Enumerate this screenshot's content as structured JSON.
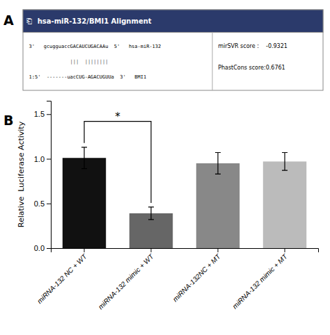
{
  "chart_data": {
    "type": "bar",
    "panel_labels": [
      "A",
      "B"
    ],
    "annotations": [
      "⎗",
      "hsa-miR-132/BMI1 Alignment",
      "3'   gcugguaccGACAUCUGACAAu  5'   hsa-miR-132",
      "              |||  ||||||||",
      "1:5'  -------uacCUG-AGACUGUUa  3'   BMI1",
      "mirSVR score :    -0.9321",
      "PhastCons score:0.6761"
    ],
    "header_color": "#2b3a6b",
    "header_text_color": "#ffffff",
    "background_color": "#ffffff",
    "categories": [
      "miRNA-132 NC + WT",
      "miRNA-132 mimic + WT",
      "miRNA-132NC + MT",
      "miRNA-132 mimic + MT"
    ],
    "values": [
      1.01,
      0.39,
      0.95,
      0.97
    ],
    "errors": [
      0.12,
      0.07,
      0.12,
      0.1
    ],
    "colors": [
      "#111111",
      "#666666",
      "#888888",
      "#bbbbbb"
    ],
    "ylabel": "Relative  Luciferase Activity",
    "ylim": [
      0,
      1.65
    ],
    "yticks": [
      {
        "value": 0.0,
        "label": "0.0"
      },
      {
        "value": 0.5,
        "label": "0.5"
      },
      {
        "value": 1.0,
        "label": "1.0"
      },
      {
        "value": 1.5,
        "label": "1.5"
      }
    ],
    "significance": {
      "bars": [
        0,
        1
      ],
      "y": 1.42,
      "label": "*"
    },
    "grid": false
  }
}
